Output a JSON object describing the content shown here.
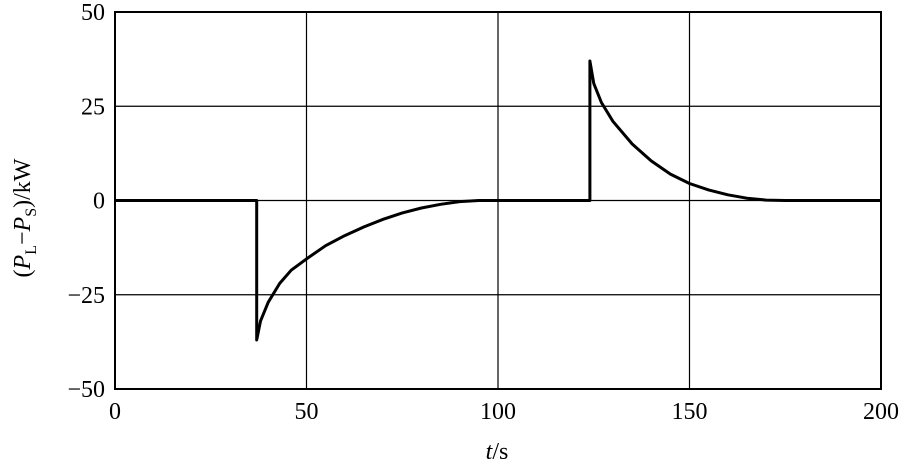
{
  "chart_data": {
    "type": "line",
    "xlabel_var": "t",
    "xlabel_unit": "/s",
    "ylabel_parts": [
      "(",
      "P",
      "L",
      "−",
      "P",
      "S",
      ")/kW"
    ],
    "xlim": [
      0,
      200
    ],
    "ylim": [
      -50,
      50
    ],
    "xticks": [
      0,
      50,
      100,
      150,
      200
    ],
    "yticks": [
      -50,
      -25,
      0,
      25,
      50
    ],
    "xtick_labels": [
      "0",
      "50",
      "100",
      "150",
      "200"
    ],
    "ytick_labels": [
      "−50",
      "−25",
      "0",
      "25",
      "50"
    ],
    "grid": true,
    "series": [
      {
        "x": [
          0,
          37,
          37,
          38,
          40,
          43,
          46,
          50,
          55,
          60,
          65,
          70,
          75,
          80,
          85,
          90,
          95,
          100,
          110,
          124,
          124,
          125,
          127,
          130,
          135,
          140,
          145,
          150,
          155,
          160,
          165,
          170,
          175,
          180,
          190,
          200
        ],
        "y": [
          0,
          0,
          -37,
          -32,
          -27,
          -22,
          -18.5,
          -15.5,
          -12,
          -9.3,
          -7,
          -5,
          -3.3,
          -2,
          -1,
          -0.3,
          0,
          0,
          0,
          0,
          37,
          31,
          26,
          21,
          15,
          10.5,
          7,
          4.5,
          2.8,
          1.5,
          0.6,
          0.1,
          0,
          0,
          0,
          0
        ]
      }
    ]
  }
}
